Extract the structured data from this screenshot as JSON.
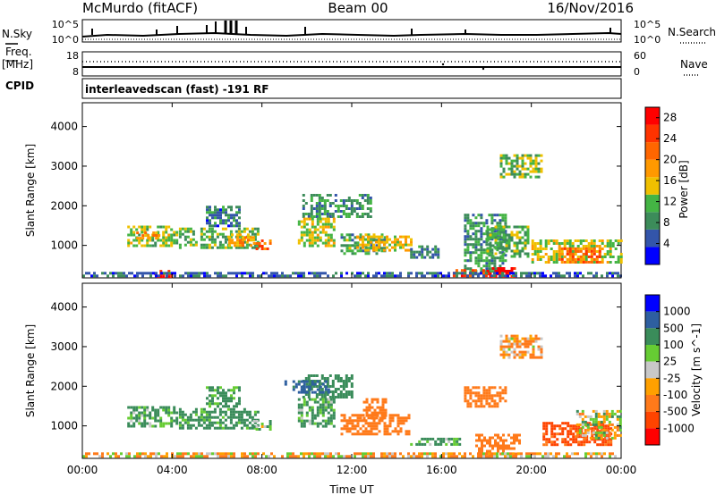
{
  "header": {
    "station": "McMurdo (fitACF)",
    "beam": "Beam 00",
    "date": "16/Nov/2016"
  },
  "top_panels": {
    "nsky_label": "N.Sky",
    "nsky_ticks": [
      "10^5",
      "10^0"
    ],
    "nsearch_label": "N.Search",
    "nsearch_ticks": [
      "10^5",
      "10^0"
    ],
    "freq_label": "Freq.",
    "freq_unit": "[MHz]",
    "freq_ticks": [
      "18",
      "8"
    ],
    "nave_label": "Nave",
    "nave_ticks": [
      "60",
      "0"
    ],
    "cpid_label": "CPID",
    "cpid_text": "interleavedscan (fast) -191 RF"
  },
  "colors": {
    "power_scale": [
      "#0000ff",
      "#3355aa",
      "#3c8c5a",
      "#44b444",
      "#f0c000",
      "#ff9900",
      "#ff6600",
      "#ff3300",
      "#ff0000"
    ],
    "velocity_scale": [
      "#ff0000",
      "#ff4400",
      "#ff7a1a",
      "#ffa000",
      "#c8c8c8",
      "#66cc33",
      "#3a8c5a",
      "#2e5fa0",
      "#0000ff"
    ]
  },
  "chart_data": [
    {
      "type": "heatmap",
      "title": "",
      "xlabel": "",
      "ylabel": "Slant Range [km]",
      "x_ticks": [
        "00:00",
        "04:00",
        "08:00",
        "12:00",
        "16:00",
        "20:00",
        "00:00"
      ],
      "y_ticks": [
        "1000",
        "2000",
        "3000",
        "4000"
      ],
      "xlim_hours": [
        0,
        24
      ],
      "ylim_km": [
        180,
        4600
      ],
      "colorbar": {
        "label": "Power [dB]",
        "ticks": [
          "4",
          "8",
          "12",
          "16",
          "20",
          "24",
          "28"
        ],
        "range": [
          0,
          30
        ]
      },
      "patches": [
        {
          "t0": 2.0,
          "t1": 4.2,
          "r0": 1000,
          "r1": 1500,
          "v": 13
        },
        {
          "t0": 2.4,
          "t1": 3.4,
          "r0": 1150,
          "r1": 1350,
          "v": 19
        },
        {
          "t0": 4.3,
          "t1": 7.8,
          "r0": 950,
          "r1": 1450,
          "v": 11
        },
        {
          "t0": 6.5,
          "t1": 7.6,
          "r0": 1000,
          "r1": 1300,
          "v": 18
        },
        {
          "t0": 7.6,
          "t1": 8.4,
          "r0": 900,
          "r1": 1150,
          "v": 22
        },
        {
          "t0": 5.5,
          "t1": 7.0,
          "r0": 1500,
          "r1": 2000,
          "v": 7
        },
        {
          "t0": 9.8,
          "t1": 12.8,
          "r0": 1700,
          "r1": 2300,
          "v": 9
        },
        {
          "t0": 9.6,
          "t1": 11.2,
          "r0": 1000,
          "r1": 1700,
          "v": 14
        },
        {
          "t0": 11.5,
          "t1": 13.5,
          "r0": 800,
          "r1": 1300,
          "v": 10
        },
        {
          "t0": 12.2,
          "t1": 14.6,
          "r0": 850,
          "r1": 1250,
          "v": 16
        },
        {
          "t0": 14.6,
          "t1": 15.8,
          "r0": 700,
          "r1": 1000,
          "v": 7
        },
        {
          "t0": 17.0,
          "t1": 18.8,
          "r0": 300,
          "r1": 1800,
          "v": 9
        },
        {
          "t0": 18.0,
          "t1": 19.8,
          "r0": 700,
          "r1": 1500,
          "v": 11
        },
        {
          "t0": 18.6,
          "t1": 20.4,
          "r0": 2700,
          "r1": 3300,
          "v": 12
        },
        {
          "t0": 20.0,
          "t1": 24.0,
          "r0": 550,
          "r1": 1150,
          "v": 14
        },
        {
          "t0": 21.2,
          "t1": 23.0,
          "r0": 600,
          "r1": 950,
          "v": 21
        },
        {
          "t0": 16.5,
          "t1": 18.0,
          "r0": 200,
          "r1": 400,
          "v": 24
        },
        {
          "t0": 18.0,
          "t1": 19.2,
          "r0": 200,
          "r1": 450,
          "v": 29
        },
        {
          "t0": 3.2,
          "t1": 4.0,
          "r0": 200,
          "r1": 380,
          "v": 27
        },
        {
          "t0": 0.0,
          "t1": 24.0,
          "r0": 200,
          "r1": 330,
          "v": 6
        }
      ]
    },
    {
      "type": "heatmap",
      "title": "",
      "xlabel": "Time UT",
      "ylabel": "Slant Range [km]",
      "x_ticks": [
        "00:00",
        "04:00",
        "08:00",
        "12:00",
        "16:00",
        "20:00",
        "00:00"
      ],
      "y_ticks": [
        "1000",
        "2000",
        "3000",
        "4000"
      ],
      "xlim_hours": [
        0,
        24
      ],
      "ylim_km": [
        180,
        4600
      ],
      "colorbar": {
        "label": "Velocity [m s^-1]",
        "ticks": [
          "1000",
          "500",
          "100",
          "25",
          "-25",
          "-100",
          "-500",
          "-1000"
        ]
      },
      "patches": [
        {
          "t0": 2.0,
          "t1": 4.2,
          "r0": 1000,
          "r1": 1500,
          "v": 150
        },
        {
          "t0": 4.3,
          "t1": 7.8,
          "r0": 950,
          "r1": 1450,
          "v": 200
        },
        {
          "t0": 7.6,
          "t1": 8.4,
          "r0": 900,
          "r1": 1150,
          "v": 60
        },
        {
          "t0": 5.5,
          "t1": 7.0,
          "r0": 1500,
          "r1": 2000,
          "v": 180
        },
        {
          "t0": 9.8,
          "t1": 12.0,
          "r0": 1700,
          "r1": 2300,
          "v": 250
        },
        {
          "t0": 9.0,
          "t1": 11.0,
          "r0": 1850,
          "r1": 2150,
          "v": 600
        },
        {
          "t0": 9.6,
          "t1": 11.2,
          "r0": 1000,
          "r1": 1700,
          "v": 150
        },
        {
          "t0": 11.5,
          "t1": 14.6,
          "r0": 800,
          "r1": 1300,
          "v": -300
        },
        {
          "t0": 12.5,
          "t1": 13.5,
          "r0": 1200,
          "r1": 1700,
          "v": -300
        },
        {
          "t0": 14.6,
          "t1": 16.8,
          "r0": 500,
          "r1": 700,
          "v": 150
        },
        {
          "t0": 17.0,
          "t1": 18.8,
          "r0": 1500,
          "r1": 2000,
          "v": -300
        },
        {
          "t0": 17.5,
          "t1": 19.5,
          "r0": 300,
          "r1": 800,
          "v": -300
        },
        {
          "t0": 18.6,
          "t1": 20.4,
          "r0": 2700,
          "r1": 3300,
          "v": -120
        },
        {
          "t0": 20.5,
          "t1": 23.5,
          "r0": 500,
          "r1": 1100,
          "v": -600
        },
        {
          "t0": 22.0,
          "t1": 24.0,
          "r0": 700,
          "r1": 1400,
          "v": 0
        },
        {
          "t0": 0.0,
          "t1": 24.0,
          "r0": 200,
          "r1": 330,
          "v": -80
        }
      ]
    }
  ]
}
